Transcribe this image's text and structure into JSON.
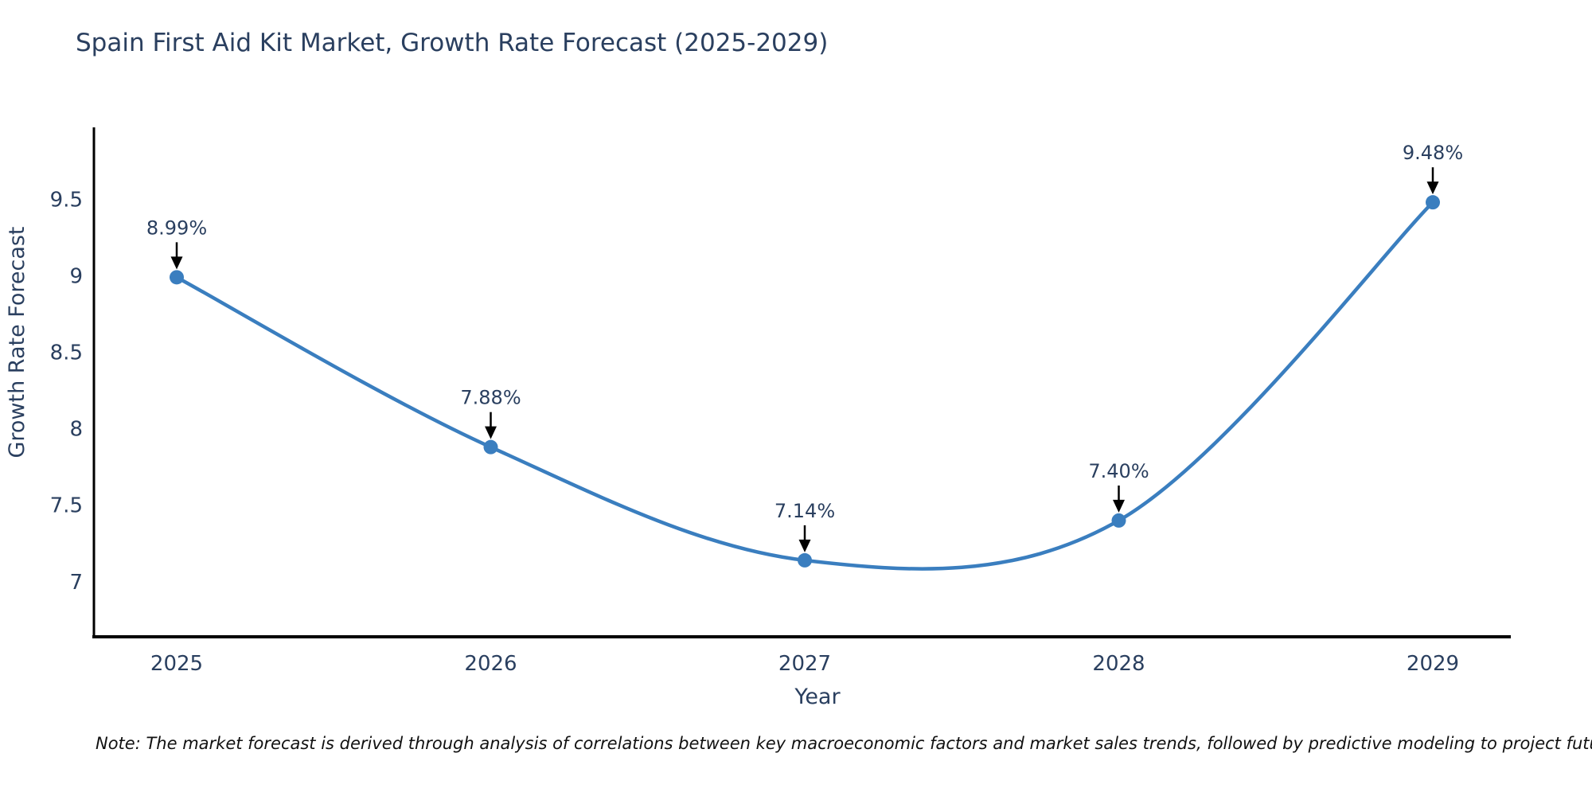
{
  "chart": {
    "title": "Spain First Aid Kit Market, Growth Rate Forecast (2025-2029)",
    "note": "Note: The market forecast is derived through analysis of correlations between key macroeconomic factors and market sales trends, followed by predictive modeling to project future sales",
    "colors": {
      "line": "#3a7ebf",
      "marker": "#3a7ebf",
      "text": "#2a3f5f",
      "axis": "#000000",
      "arrow": "#000000",
      "background": "#ffffff"
    }
  },
  "chart_data": {
    "type": "line",
    "title": "Spain First Aid Kit Market, Growth Rate Forecast (2025-2029)",
    "x": [
      2025,
      2026,
      2027,
      2028,
      2029
    ],
    "values": [
      8.99,
      7.88,
      7.14,
      7.4,
      9.48
    ],
    "point_labels": [
      "8.99%",
      "7.88%",
      "7.14%",
      "7.40%",
      "9.48%"
    ],
    "xlabel": "Year",
    "ylabel": "Growth Rate Forecast",
    "yticks": [
      7,
      7.5,
      8,
      8.5,
      9,
      9.5
    ],
    "ylim": [
      6.64,
      9.97
    ],
    "line_shape": "spline",
    "grid": false,
    "legend_position": "none",
    "annotations_style": "value labels above points with downward black arrows"
  }
}
